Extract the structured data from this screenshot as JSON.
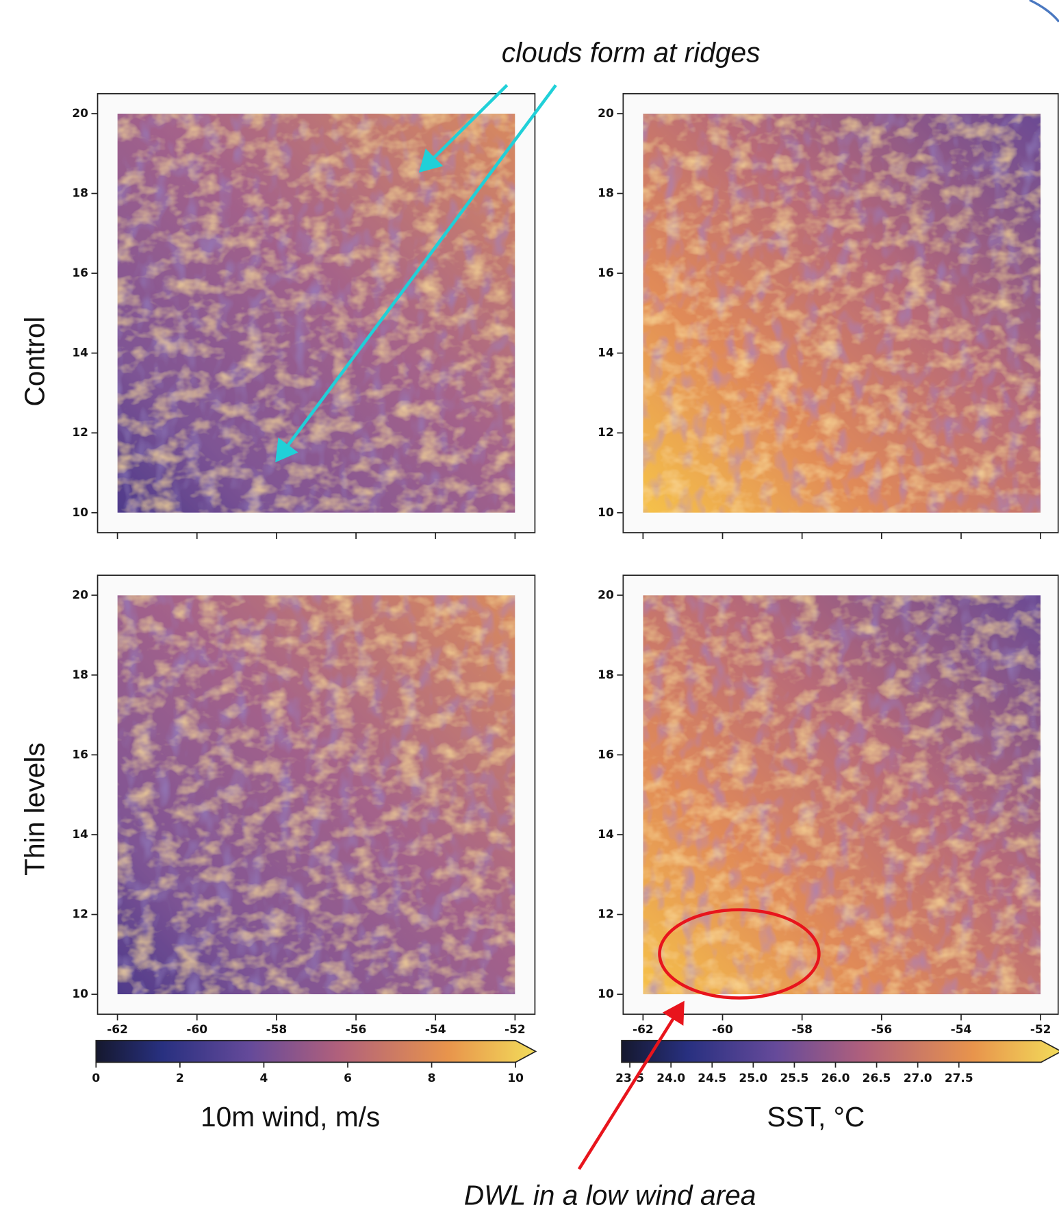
{
  "annotations": {
    "top": "clouds form at ridges",
    "bottom": "DWL in a low wind area"
  },
  "row_labels": [
    "Control",
    "Thin levels"
  ],
  "panels": [
    {
      "row": 0,
      "col": 0,
      "colorbar": 0,
      "show_xtick_labels": false,
      "xlim": [
        -62.5,
        -51.5
      ],
      "ylim": [
        9.5,
        20.5
      ],
      "xticks": [
        -62,
        -60,
        -58,
        -56,
        -54,
        -52
      ],
      "yticks": [
        10,
        12,
        14,
        16,
        18,
        20
      ]
    },
    {
      "row": 0,
      "col": 1,
      "colorbar": 1,
      "show_xtick_labels": false,
      "xlim": [
        -62.5,
        -51.5
      ],
      "ylim": [
        9.5,
        20.5
      ],
      "xticks": [
        -62,
        -60,
        -58,
        -56,
        -54,
        -52
      ],
      "yticks": [
        10,
        12,
        14,
        16,
        18,
        20
      ]
    },
    {
      "row": 1,
      "col": 0,
      "colorbar": 0,
      "show_xtick_labels": true,
      "xlim": [
        -62.5,
        -51.5
      ],
      "ylim": [
        9.5,
        20.5
      ],
      "xticks": [
        -62,
        -60,
        -58,
        -56,
        -54,
        -52
      ],
      "yticks": [
        10,
        12,
        14,
        16,
        18,
        20
      ]
    },
    {
      "row": 1,
      "col": 1,
      "colorbar": 1,
      "show_xtick_labels": true,
      "xlim": [
        -62.5,
        -51.5
      ],
      "ylim": [
        9.5,
        20.5
      ],
      "xticks": [
        -62,
        -60,
        -58,
        -56,
        -54,
        -52
      ],
      "yticks": [
        10,
        12,
        14,
        16,
        18,
        20
      ]
    }
  ],
  "colorbars": [
    {
      "label": "10m wind, m/s",
      "lim": [
        0,
        10
      ],
      "ticks": [
        0,
        2,
        4,
        6,
        8,
        10
      ]
    },
    {
      "label": "SST, °C",
      "lim": [
        23.4,
        28.5
      ],
      "ticks": [
        23.5,
        {
          "value": 24,
          "label": "24.0"
        },
        24.5,
        {
          "value": 25,
          "label": "25.0"
        },
        25.5,
        {
          "value": 26,
          "label": "26.0"
        },
        26.5,
        {
          "value": 27,
          "label": "27.0"
        },
        27.5
      ]
    }
  ]
}
